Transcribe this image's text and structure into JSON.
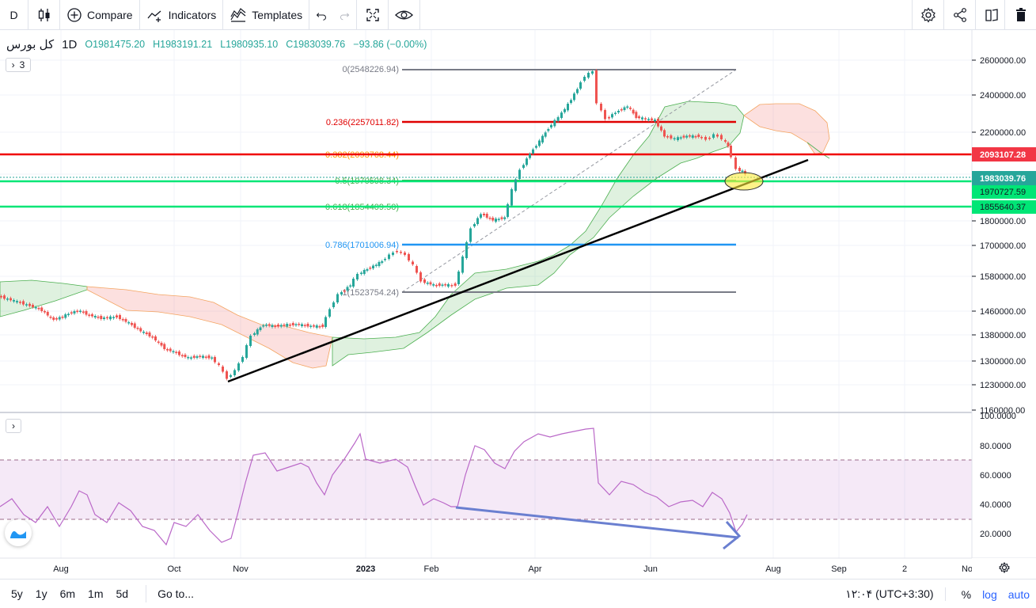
{
  "toolbar": {
    "interval": "D",
    "compare_label": "Compare",
    "indicators_label": "Indicators",
    "templates_label": "Templates"
  },
  "legend": {
    "symbol": "کل بورس",
    "interval": "1D",
    "open": "O1981475.20",
    "high": "H1983191.21",
    "low": "L1980935.10",
    "close": "C1983039.76",
    "change": "−93.86 (−0.00%)",
    "collapse_count": "3"
  },
  "price_scale": {
    "ticks": [
      "2600000.00",
      "2400000.00",
      "2200000.00",
      "1800000.00",
      "1700000.00",
      "1580000.00",
      "1460000.00",
      "1380000.00",
      "1300000.00",
      "1230000.00",
      "1160000.00"
    ],
    "tags": [
      {
        "label": "2093107.28",
        "color": "#f23645"
      },
      {
        "label": "1983039.76",
        "color": "#26a69a"
      },
      {
        "label": "1970727.59",
        "color": "#00e676"
      },
      {
        "label": "1855640.37",
        "color": "#00e676"
      }
    ]
  },
  "rsi_scale": {
    "ticks": [
      "100.0000",
      "80.0000",
      "60.0000",
      "40.0000",
      "20.0000"
    ]
  },
  "fib_levels": [
    {
      "label": "0(2548226.94)",
      "color": "#787b86"
    },
    {
      "label": "0.236(2257011.82)",
      "color": "#f23645"
    },
    {
      "label": "0.382(2093768.44)",
      "color": "#ff9800"
    },
    {
      "label": "0.5(1970508.34)",
      "color": "#4caf50"
    },
    {
      "label": "0.618(1854409.50)",
      "color": "#4caf50"
    },
    {
      "label": "0.786(1701006.94)",
      "color": "#2196f3"
    },
    {
      "label": "1(1523754.24)",
      "color": "#787b86"
    }
  ],
  "time_axis": {
    "labels": [
      "Aug",
      "Oct",
      "Nov",
      "2023",
      "Feb",
      "Apr",
      "Jun",
      "Aug",
      "Sep",
      "2",
      "No"
    ]
  },
  "bottom_bar": {
    "ranges": [
      "5y",
      "1y",
      "6m",
      "1m",
      "5d"
    ],
    "goto": "Go to...",
    "time": "۱۲:۰۴ (UTC+3:30)",
    "percent": "%",
    "log": "log",
    "auto": "auto"
  },
  "colors": {
    "up": "#26a69a",
    "down": "#ef5350",
    "rsi": "#9c27b0",
    "accent": "#2962ff"
  }
}
